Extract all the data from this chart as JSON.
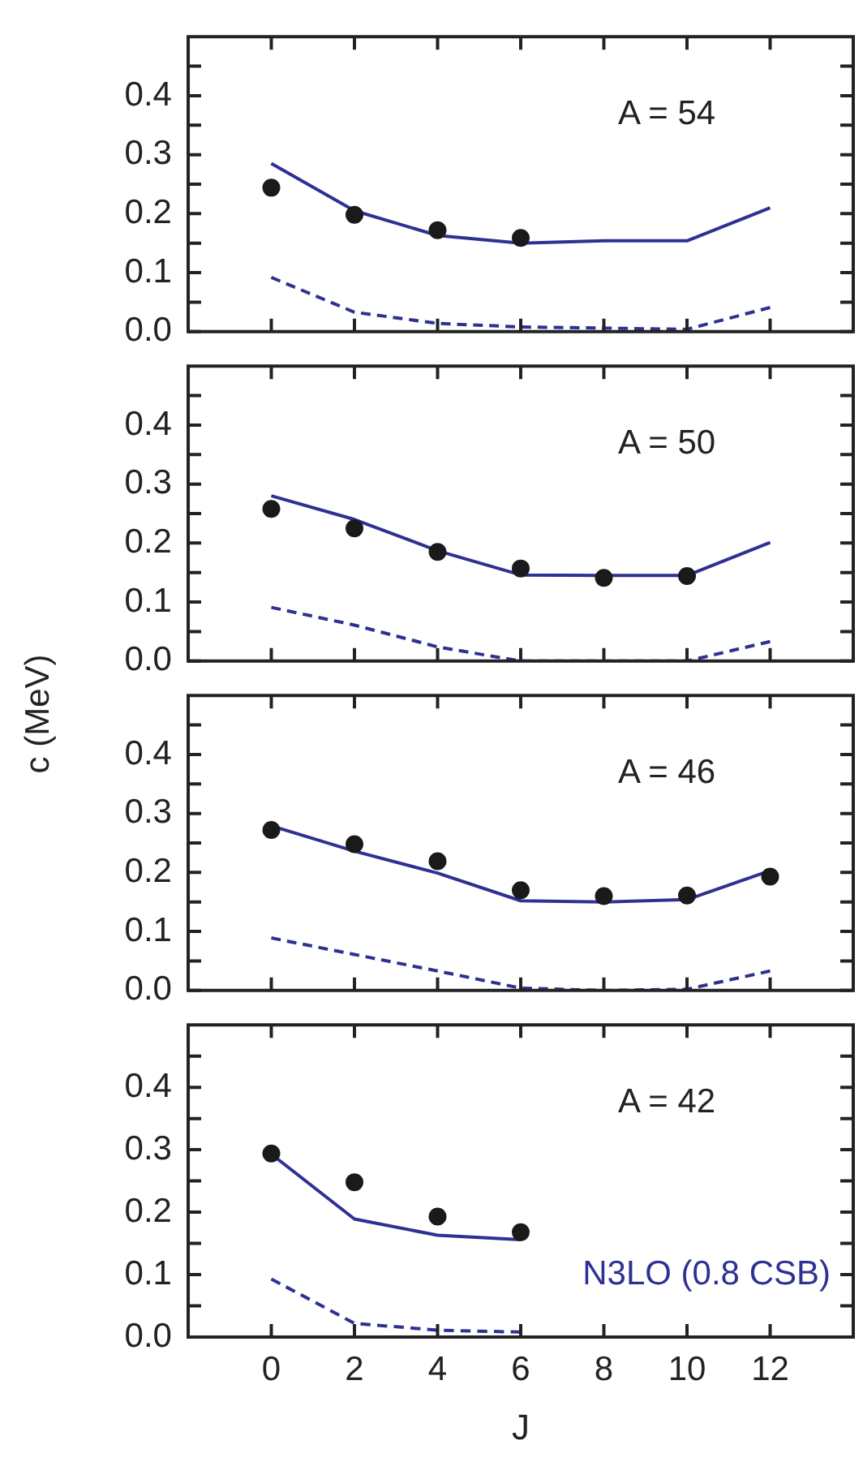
{
  "chart_data": [
    {
      "type": "line",
      "annotations": [
        "A = 54"
      ],
      "xlim": [
        -2,
        14
      ],
      "xticks": [
        0,
        2,
        4,
        6,
        8,
        10,
        12
      ],
      "ylim": [
        0,
        0.5
      ],
      "yticks": [
        {
          "value": 0,
          "label": "0.0"
        },
        {
          "value": 0.05,
          "label": null
        },
        {
          "value": 0.1,
          "label": "0.1"
        },
        {
          "value": 0.15,
          "label": null
        },
        {
          "value": 0.2,
          "label": "0.2"
        },
        {
          "value": 0.25,
          "label": null
        },
        {
          "value": 0.3,
          "label": "0.3"
        },
        {
          "value": 0.35,
          "label": null
        },
        {
          "value": 0.4,
          "label": "0.4"
        },
        {
          "value": 0.45,
          "label": null
        }
      ],
      "tick_labels": "y",
      "series": [
        {
          "type": "scatter",
          "marker": "circle",
          "color": "#1a1a1a",
          "x": [
            0,
            2,
            4,
            6
          ],
          "values": [
            0.244,
            0.198,
            0.172,
            0.159
          ]
        },
        {
          "color": "#2e3192",
          "line_style": "solid",
          "x": [
            0,
            2,
            4,
            6,
            8,
            10,
            12
          ],
          "values": [
            0.285,
            0.205,
            0.163,
            0.15,
            0.154,
            0.154,
            0.21
          ]
        },
        {
          "color": "#2e3192",
          "line_style": "dashed",
          "x": [
            0,
            2,
            4,
            6,
            8,
            10,
            12
          ],
          "values": [
            0.092,
            0.033,
            0.014,
            0.008,
            0.006,
            0.004,
            0.041
          ]
        }
      ]
    },
    {
      "type": "line",
      "annotations": [
        "A = 50"
      ],
      "xlim": [
        -2,
        14
      ],
      "xticks": [
        0,
        2,
        4,
        6,
        8,
        10,
        12
      ],
      "ylim": [
        0,
        0.5
      ],
      "yticks": [
        {
          "value": 0,
          "label": "0.0"
        },
        {
          "value": 0.05,
          "label": null
        },
        {
          "value": 0.1,
          "label": "0.1"
        },
        {
          "value": 0.15,
          "label": null
        },
        {
          "value": 0.2,
          "label": "0.2"
        },
        {
          "value": 0.25,
          "label": null
        },
        {
          "value": 0.3,
          "label": "0.3"
        },
        {
          "value": 0.35,
          "label": null
        },
        {
          "value": 0.4,
          "label": "0.4"
        },
        {
          "value": 0.45,
          "label": null
        }
      ],
      "tick_labels": "y",
      "series": [
        {
          "type": "scatter",
          "marker": "circle",
          "color": "#1a1a1a",
          "x": [
            0,
            2,
            4,
            6,
            8,
            10
          ],
          "values": [
            0.258,
            0.225,
            0.185,
            0.157,
            0.141,
            0.144
          ]
        },
        {
          "color": "#2e3192",
          "line_style": "solid",
          "x": [
            0,
            2,
            4,
            6,
            8,
            10,
            12
          ],
          "values": [
            0.28,
            0.24,
            0.187,
            0.146,
            0.145,
            0.145,
            0.201
          ]
        },
        {
          "color": "#2e3192",
          "line_style": "dashed",
          "x": [
            0,
            2,
            4,
            6,
            8,
            10,
            12
          ],
          "values": [
            0.091,
            0.061,
            0.024,
            0,
            0,
            0,
            0.033
          ]
        }
      ]
    },
    {
      "type": "line",
      "ylabel": "c (MeV)",
      "annotations": [
        "A = 46"
      ],
      "xlim": [
        -2,
        14
      ],
      "xticks": [
        0,
        2,
        4,
        6,
        8,
        10,
        12
      ],
      "ylim": [
        0,
        0.5
      ],
      "yticks": [
        {
          "value": 0,
          "label": "0.0"
        },
        {
          "value": 0.05,
          "label": null
        },
        {
          "value": 0.1,
          "label": "0.1"
        },
        {
          "value": 0.15,
          "label": null
        },
        {
          "value": 0.2,
          "label": "0.2"
        },
        {
          "value": 0.25,
          "label": null
        },
        {
          "value": 0.3,
          "label": "0.3"
        },
        {
          "value": 0.35,
          "label": null
        },
        {
          "value": 0.4,
          "label": "0.4"
        },
        {
          "value": 0.45,
          "label": null
        }
      ],
      "tick_labels": "y",
      "series": [
        {
          "type": "scatter",
          "marker": "circle",
          "color": "#1a1a1a",
          "x": [
            0,
            2,
            4,
            6,
            8,
            10,
            12
          ],
          "values": [
            0.272,
            0.248,
            0.219,
            0.17,
            0.16,
            0.161,
            0.193
          ]
        },
        {
          "color": "#2e3192",
          "line_style": "solid",
          "x": [
            0,
            2,
            4,
            6,
            8,
            10,
            12
          ],
          "values": [
            0.279,
            0.236,
            0.199,
            0.152,
            0.15,
            0.154,
            0.203
          ]
        },
        {
          "color": "#2e3192",
          "line_style": "dashed",
          "x": [
            0,
            2,
            4,
            6,
            8,
            10,
            12
          ],
          "values": [
            0.089,
            0.061,
            0.033,
            0.004,
            0,
            0.002,
            0.033
          ]
        }
      ]
    },
    {
      "type": "line",
      "xlabel": "J",
      "annotations": [
        "A = 42"
      ],
      "xlim": [
        -2,
        14
      ],
      "xticks": [
        0,
        2,
        4,
        6,
        8,
        10,
        12
      ],
      "ylim": [
        0,
        0.5
      ],
      "yticks": [
        {
          "value": 0,
          "label": "0.0"
        },
        {
          "value": 0.05,
          "label": null
        },
        {
          "value": 0.1,
          "label": "0.1"
        },
        {
          "value": 0.15,
          "label": null
        },
        {
          "value": 0.2,
          "label": "0.2"
        },
        {
          "value": 0.25,
          "label": null
        },
        {
          "value": 0.3,
          "label": "0.3"
        },
        {
          "value": 0.35,
          "label": null
        },
        {
          "value": 0.4,
          "label": "0.4"
        },
        {
          "value": 0.45,
          "label": null
        }
      ],
      "series": [
        {
          "type": "scatter",
          "marker": "circle",
          "color": "#1a1a1a",
          "x": [
            0,
            2,
            4,
            6
          ],
          "values": [
            0.294,
            0.248,
            0.193,
            0.168
          ]
        },
        {
          "name": "N3LO (0.8 CSB)",
          "color": "#2e3192",
          "line_style": "solid",
          "x": [
            0,
            2,
            4,
            6
          ],
          "values": [
            0.293,
            0.189,
            0.163,
            0.156
          ]
        },
        {
          "color": "#2e3192",
          "line_style": "dashed",
          "x": [
            0,
            2,
            4,
            6
          ],
          "values": [
            0.093,
            0.022,
            0.011,
            0.008
          ]
        }
      ]
    }
  ]
}
